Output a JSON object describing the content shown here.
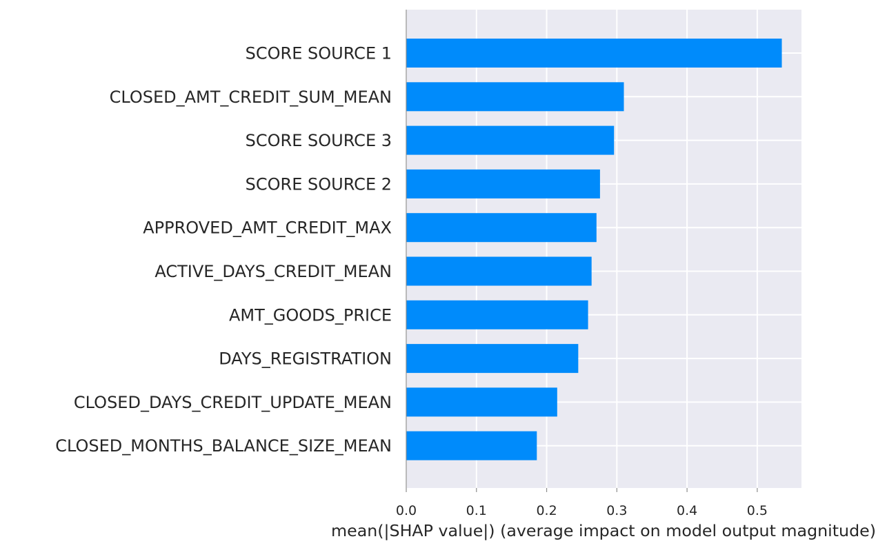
{
  "chart_data": {
    "type": "bar",
    "orientation": "horizontal",
    "categories": [
      "SCORE SOURCE 1",
      "CLOSED_AMT_CREDIT_SUM_MEAN",
      "SCORE SOURCE 3",
      "SCORE SOURCE 2",
      "APPROVED_AMT_CREDIT_MAX",
      "ACTIVE_DAYS_CREDIT_MEAN",
      "AMT_GOODS_PRICE",
      "DAYS_REGISTRATION",
      "CLOSED_DAYS_CREDIT_UPDATE_MEAN",
      "CLOSED_MONTHS_BALANCE_SIZE_MEAN"
    ],
    "values": [
      0.535,
      0.31,
      0.296,
      0.276,
      0.271,
      0.264,
      0.259,
      0.245,
      0.215,
      0.186
    ],
    "xlabel": "mean(|SHAP value|) (average impact on model output magnitude)",
    "ylabel": "",
    "xlim": [
      0,
      0.563
    ],
    "xticks": [
      "0.0",
      "0.1",
      "0.2",
      "0.3",
      "0.4",
      "0.5"
    ],
    "grid": true,
    "colors": {
      "bar": "#008bfb",
      "plot_background": "#eaeaf2",
      "grid": "#ffffff",
      "axis": "#8c8c8c",
      "text": "#262626"
    }
  }
}
